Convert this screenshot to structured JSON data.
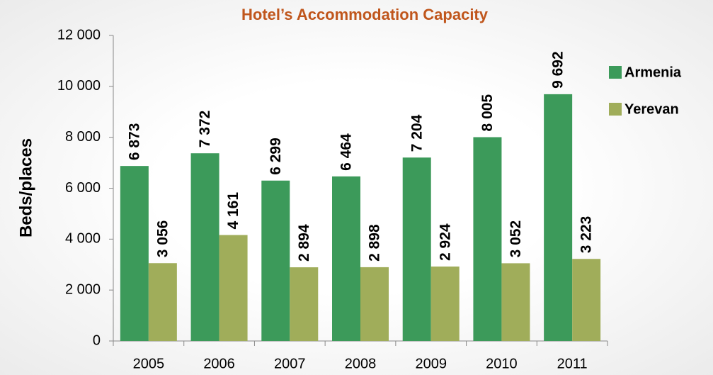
{
  "chart_data": {
    "type": "bar",
    "title": "Hotel’s Accommodation Capacity",
    "y_label": "Beds/places",
    "categories": [
      "2005",
      "2006",
      "2007",
      "2008",
      "2009",
      "2010",
      "2011"
    ],
    "series": [
      {
        "name": "Armenia",
        "color": "#3c9a5a",
        "values": [
          6873,
          7372,
          6299,
          6464,
          7204,
          8005,
          9692
        ],
        "value_labels": [
          "6 873",
          "7 372",
          "6 299",
          "6 464",
          "7 204",
          "8 005",
          "9 692"
        ]
      },
      {
        "name": "Yerevan",
        "color": "#a0ad5a",
        "values": [
          3056,
          4161,
          2894,
          2898,
          2924,
          3052,
          3223
        ],
        "value_labels": [
          "3 056",
          "4 161",
          "2 894",
          "2 898",
          "2 924",
          "3 052",
          "3 223"
        ]
      }
    ],
    "ylim": [
      0,
      12000
    ],
    "yticks": [
      0,
      {
        "value": 2000,
        "label": "2 000"
      },
      {
        "value": 4000,
        "label": "4 000"
      },
      {
        "value": 6000,
        "label": "6 000"
      },
      {
        "value": 8000,
        "label": "8 000"
      },
      {
        "value": 10000,
        "label": "10 000"
      },
      {
        "value": 12000,
        "label": "12 000"
      }
    ],
    "legend": "right",
    "grid": false
  }
}
